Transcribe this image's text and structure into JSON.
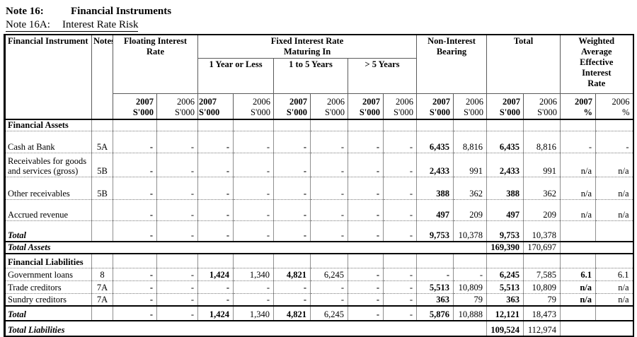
{
  "title": {
    "note_label": "Note 16:",
    "note_title": "Financial Instruments",
    "subnote_label": "Note 16A:",
    "subnote_title": "Interest Rate Risk"
  },
  "table": {
    "headers": {
      "financial_instrument": "Financial Instrument",
      "notes": "Notes",
      "floating": "Floating Interest Rate",
      "fixed_line1": "Fixed Interest Rate",
      "fixed_line2": "Maturing In",
      "fixed_sub": [
        "1 Year or Less",
        "1 to 5  Years",
        ">  5 Years"
      ],
      "non_interest": "Non-Interest Bearing",
      "total": "Total",
      "weighted": "Weighted Average Effective Interest Rate"
    },
    "year_columns": [
      {
        "year": "2007",
        "unit": "S'000"
      },
      {
        "year": "2006",
        "unit": "S'000"
      },
      {
        "year": "2007",
        "unit": "S'000"
      },
      {
        "year": "2006",
        "unit": "S'000"
      },
      {
        "year": "2007",
        "unit": "S'000"
      },
      {
        "year": "2006",
        "unit": "S'000"
      },
      {
        "year": "2007",
        "unit": "S'000"
      },
      {
        "year": "2006",
        "unit": "S'000"
      },
      {
        "year": "2007",
        "unit": "S'000"
      },
      {
        "year": "2006",
        "unit": "S'000"
      },
      {
        "year": "2007",
        "unit": "S'000"
      },
      {
        "year": "2006",
        "unit": "S'000"
      },
      {
        "year": "2007",
        "unit": "%"
      },
      {
        "year": "2006",
        "unit": "%"
      }
    ],
    "rows": [
      {
        "type": "section",
        "label": "Financial Assets",
        "note": "",
        "values": [
          "",
          "",
          "",
          "",
          "",
          "",
          "",
          "",
          "",
          "",
          "",
          "",
          "",
          ""
        ],
        "wb": false
      },
      {
        "type": "data",
        "label": "Cash at Bank",
        "note": "5A",
        "values": [
          "-",
          "-",
          "-",
          "-",
          "-",
          "-",
          "-",
          "-",
          "6,435",
          "8,816",
          "6,435",
          "8,816",
          "-",
          "-"
        ],
        "wb": false
      },
      {
        "type": "data",
        "label": "Receivables for goods and services (gross)",
        "note": "5B",
        "values": [
          "-",
          "-",
          "-",
          "-",
          "-",
          "-",
          "-",
          "-",
          "2,433",
          "991",
          "2,433",
          "991",
          "n/a",
          "n/a"
        ],
        "wb": false
      },
      {
        "type": "data",
        "label": "Other receivables",
        "note": "5B",
        "values": [
          "-",
          "-",
          "-",
          "-",
          "-",
          "-",
          "-",
          "-",
          "388",
          "362",
          "388",
          "362",
          "n/a",
          "n/a"
        ],
        "wb": false
      },
      {
        "type": "data",
        "label": "Accrued revenue",
        "note": "",
        "values": [
          "-",
          "-",
          "-",
          "-",
          "-",
          "-",
          "-",
          "-",
          "497",
          "209",
          "497",
          "209",
          "n/a",
          "n/a"
        ],
        "wb": false
      },
      {
        "type": "total",
        "label": "Total",
        "note": "",
        "values": [
          "-",
          "-",
          "-",
          "-",
          "-",
          "-",
          "-",
          "-",
          "9,753",
          "10,378",
          "9,753",
          "10,378",
          "",
          ""
        ],
        "wb": false
      },
      {
        "type": "grand",
        "label": "Total Assets",
        "values": [
          "169,390",
          "170,697"
        ]
      },
      {
        "type": "section",
        "label": "Financial Liabilities",
        "note": "",
        "values": [
          "",
          "",
          "",
          "",
          "",
          "",
          "",
          "",
          "",
          "",
          "",
          "",
          "",
          ""
        ],
        "wb": false
      },
      {
        "type": "data",
        "label": "Government loans",
        "note": "8",
        "values": [
          "-",
          "-",
          "1,424",
          "1,340",
          "4,821",
          "6,245",
          "-",
          "-",
          "-",
          "-",
          "6,245",
          "7,585",
          "6.1",
          "6.1"
        ],
        "wb": true
      },
      {
        "type": "data",
        "label": "Trade creditors",
        "note": "7A",
        "values": [
          "-",
          "-",
          "-",
          "-",
          "-",
          "-",
          "-",
          "-",
          "5,513",
          "10,809",
          "5,513",
          "10,809",
          "n/a",
          "n/a"
        ],
        "wb": true
      },
      {
        "type": "data",
        "label": "Sundry creditors",
        "note": "7A",
        "values": [
          "-",
          "-",
          "-",
          "-",
          "-",
          "-",
          "-",
          "-",
          "363",
          "79",
          "363",
          "79",
          "n/a",
          "n/a"
        ],
        "wb": true
      },
      {
        "type": "total",
        "label": "Total",
        "note": "",
        "values": [
          "-",
          "-",
          "1,424",
          "1,340",
          "4,821",
          "6,245",
          "-",
          "-",
          "5,876",
          "10,888",
          "12,121",
          "18,473",
          "",
          ""
        ],
        "wb": false
      },
      {
        "type": "grand",
        "label": "Total Liabilities",
        "values": [
          "109,524",
          "112,974"
        ]
      }
    ]
  }
}
